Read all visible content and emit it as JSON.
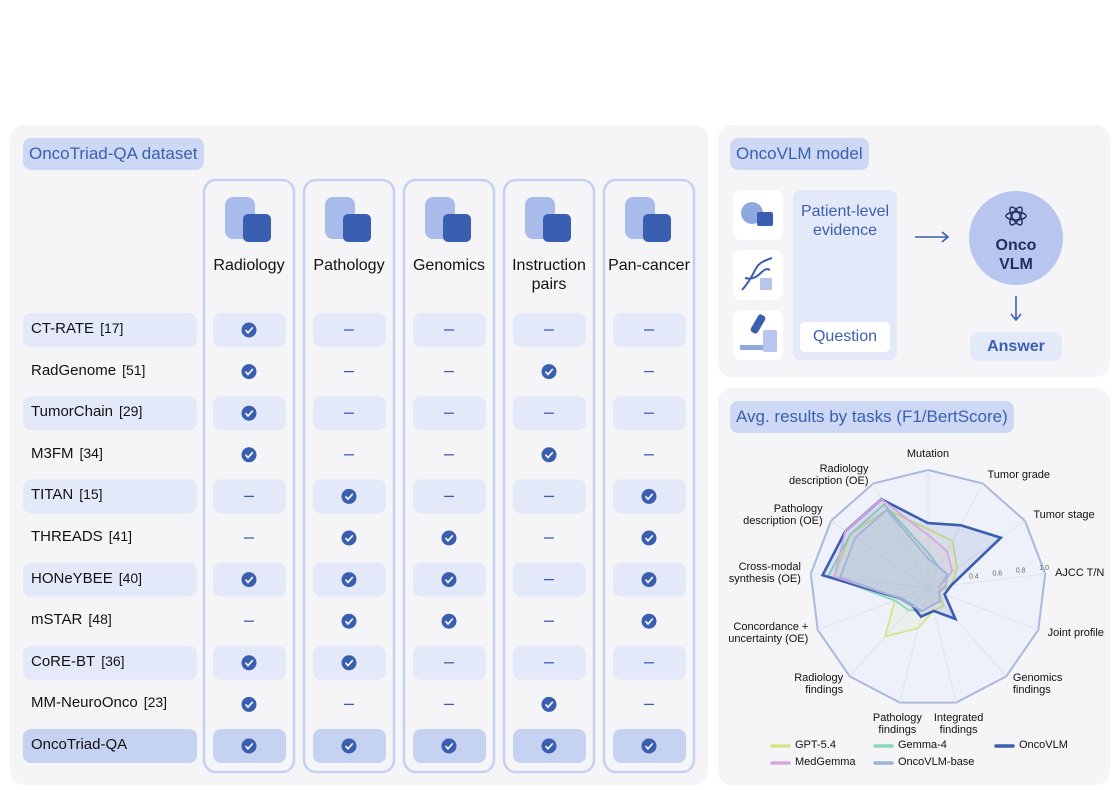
{
  "dataset": {
    "title": "OncoTriad-QA dataset",
    "columns": [
      "Radiology",
      "Pathology",
      "Genomics",
      "Instruction pairs",
      "Pan-cancer"
    ],
    "rows": [
      {
        "name": "CT-RATE",
        "ref": "[17]",
        "flags": [
          true,
          false,
          false,
          false,
          false
        ]
      },
      {
        "name": "RadGenome",
        "ref": "[51]",
        "flags": [
          true,
          false,
          false,
          true,
          false
        ]
      },
      {
        "name": "TumorChain",
        "ref": "[29]",
        "flags": [
          true,
          false,
          false,
          false,
          false
        ]
      },
      {
        "name": "M3FM",
        "ref": "[34]",
        "flags": [
          true,
          false,
          false,
          true,
          false
        ]
      },
      {
        "name": "TITAN",
        "ref": "[15]",
        "flags": [
          false,
          true,
          false,
          false,
          true
        ]
      },
      {
        "name": "THREADS",
        "ref": "[41]",
        "flags": [
          false,
          true,
          true,
          false,
          true
        ]
      },
      {
        "name": "HONeYBEE",
        "ref": "[40]",
        "flags": [
          true,
          true,
          true,
          false,
          true
        ]
      },
      {
        "name": "mSTAR",
        "ref": "[48]",
        "flags": [
          false,
          true,
          true,
          false,
          true
        ]
      },
      {
        "name": "CoRE-BT",
        "ref": "[36]",
        "flags": [
          true,
          true,
          false,
          false,
          false
        ]
      },
      {
        "name": "MM-NeuroOnco",
        "ref": "[23]",
        "flags": [
          true,
          false,
          false,
          true,
          false
        ]
      },
      {
        "name": "OncoTriad-QA",
        "flags": [
          true,
          true,
          true,
          true,
          true
        ]
      }
    ]
  },
  "model": {
    "title": "OncoVLM model",
    "evidence": "Patient-level evidence",
    "question": "Question",
    "core": "Onco VLM",
    "answer": "Answer"
  },
  "chart_data": {
    "type": "radar",
    "title": "Avg. results by tasks (F1/BertScore)",
    "categories": [
      "Mutation",
      "Tumor grade",
      "Tumor stage",
      "AJCC T/N",
      "Joint profile",
      "Genomics findings",
      "Integrated findings",
      "Pathology findings",
      "Radiology findings",
      "Concordance + uncertainty (OE)",
      "Cross-modal synthesis (OE)",
      "Pathology description (OE)",
      "Radiology description (OE)"
    ],
    "ylim": [
      0,
      1
    ],
    "yticks": [
      0.4,
      0.6,
      0.8,
      {
        "value": 1,
        "label": "1.0"
      }
    ],
    "series": [
      {
        "name": "GPT-5.4",
        "color": "#d6e486",
        "values": [
          0.5,
          0.45,
          0.3,
          0.2,
          0.1,
          0.2,
          0.2,
          0.35,
          0.55,
          0.3,
          0.8,
          0.8,
          0.75
        ]
      },
      {
        "name": "Gemma-4",
        "color": "#8dd5c2",
        "values": [
          0.3,
          0.2,
          0.2,
          0.1,
          0.1,
          0.15,
          0.15,
          0.2,
          0.25,
          0.3,
          0.85,
          0.8,
          0.8
        ]
      },
      {
        "name": "OncoVLM",
        "color": "#3b5fb0",
        "values": [
          0.55,
          0.6,
          0.75,
          0.2,
          0.15,
          0.35,
          0.2,
          0.25,
          0.2,
          0.25,
          0.9,
          0.85,
          0.85
        ]
      },
      {
        "name": "MedGemma",
        "color": "#d8a6df",
        "values": [
          0.45,
          0.35,
          0.25,
          0.1,
          0.1,
          0.15,
          0.15,
          0.2,
          0.2,
          0.25,
          0.8,
          0.85,
          0.85
        ]
      },
      {
        "name": "OncoVLM-base",
        "color": "#9fb2dc",
        "values": [
          0.25,
          0.2,
          0.2,
          0.15,
          0.1,
          0.15,
          0.15,
          0.2,
          0.2,
          0.25,
          0.75,
          0.75,
          0.75
        ]
      }
    ]
  }
}
